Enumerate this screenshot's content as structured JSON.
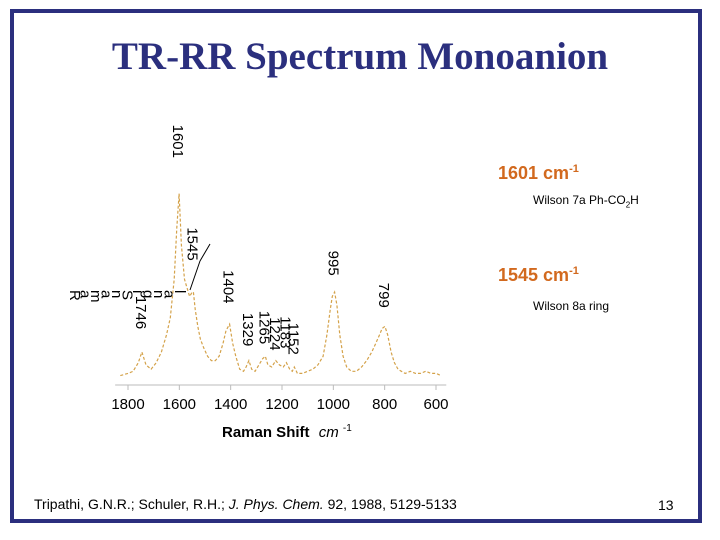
{
  "slide": {
    "title": "TR-RR Spectrum Monoanion",
    "annotations": [
      {
        "band": "1601 cm",
        "unit_sup": "-1",
        "assign_a": "Wilson 7a Ph-CO",
        "assign_sub": "2",
        "assign_b": "H"
      },
      {
        "band": "1545 cm",
        "unit_sup": "-1",
        "assign_a": "Wilson 8a ring",
        "assign_sub": "",
        "assign_b": ""
      }
    ],
    "citation": {
      "authors": "Tripathi, G.N.R.; Schuler, R.H.;",
      "journal": "J. Phys. Chem.",
      "volume": "92,",
      "year": "1988",
      "pages": ", 5129-5133"
    },
    "page_number": "13"
  },
  "chart_data": {
    "type": "line",
    "xlabel": "Raman Shift",
    "xlabel_unit": "cm",
    "xlabel_unit_sup": "-1",
    "ylabel": "Raman Signal",
    "xlim": [
      1850,
      560
    ],
    "ylim": [
      0,
      100
    ],
    "xticks": [
      1800,
      1600,
      1400,
      1200,
      1000,
      800,
      600
    ],
    "line_color": "#d4a24a",
    "axis_color": "#bbbbbb",
    "peak_labels": [
      {
        "x": 1746,
        "y": 20,
        "text": "1746"
      },
      {
        "x": 1601,
        "y": 100,
        "text": "1601"
      },
      {
        "x": 1545,
        "y": 52,
        "text": "1545"
      },
      {
        "x": 1404,
        "y": 32,
        "text": "1404"
      },
      {
        "x": 1329,
        "y": 12,
        "text": "1329"
      },
      {
        "x": 1265,
        "y": 13,
        "text": "1265"
      },
      {
        "x": 1224,
        "y": 10,
        "text": "1224"
      },
      {
        "x": 1183,
        "y": 11,
        "text": "1183"
      },
      {
        "x": 1152,
        "y": 8,
        "text": "1152"
      },
      {
        "x": 995,
        "y": 45,
        "text": "995"
      },
      {
        "x": 799,
        "y": 30,
        "text": "799"
      }
    ],
    "spectrum": {
      "x": [
        1830,
        1800,
        1780,
        1760,
        1746,
        1730,
        1710,
        1690,
        1670,
        1650,
        1635,
        1620,
        1610,
        1601,
        1592,
        1580,
        1570,
        1560,
        1550,
        1545,
        1538,
        1528,
        1518,
        1505,
        1490,
        1475,
        1460,
        1445,
        1430,
        1418,
        1404,
        1392,
        1380,
        1365,
        1350,
        1340,
        1329,
        1318,
        1305,
        1290,
        1275,
        1265,
        1255,
        1240,
        1224,
        1210,
        1195,
        1183,
        1170,
        1160,
        1152,
        1140,
        1120,
        1100,
        1080,
        1060,
        1040,
        1025,
        1012,
        1004,
        995,
        986,
        975,
        962,
        948,
        930,
        910,
        890,
        870,
        850,
        835,
        820,
        810,
        799,
        788,
        775,
        762,
        748,
        735,
        720,
        700,
        680,
        660,
        640,
        620,
        600,
        580
      ],
      "y": [
        3,
        4,
        5,
        9,
        14,
        8,
        6,
        9,
        14,
        22,
        30,
        48,
        72,
        88,
        64,
        48,
        44,
        40,
        42,
        42,
        34,
        26,
        20,
        16,
        12,
        10,
        10,
        12,
        18,
        24,
        27,
        18,
        12,
        6,
        5,
        7,
        10,
        6,
        5,
        8,
        11,
        12,
        8,
        7,
        10,
        8,
        7,
        9,
        6,
        5,
        7,
        4,
        4,
        5,
        6,
        8,
        12,
        22,
        34,
        40,
        42,
        36,
        22,
        12,
        7,
        5,
        5,
        7,
        10,
        14,
        18,
        22,
        25,
        26,
        22,
        14,
        9,
        6,
        5,
        4,
        5,
        4,
        4,
        5,
        4,
        4,
        3
      ]
    }
  }
}
